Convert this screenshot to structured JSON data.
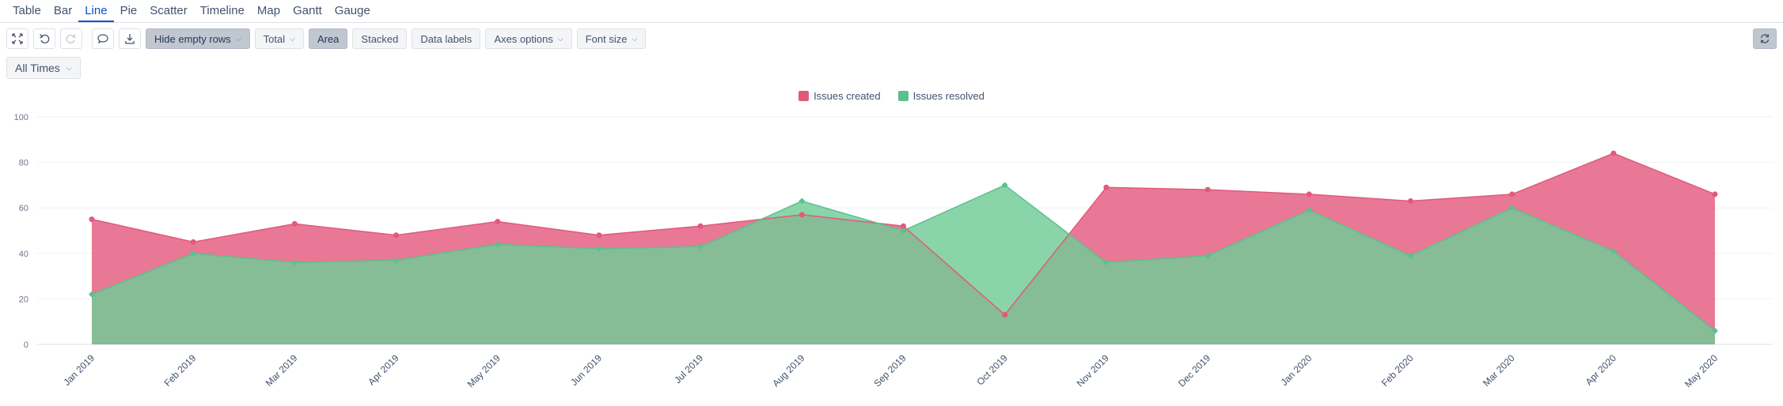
{
  "tabs": [
    {
      "label": "Table",
      "active": false
    },
    {
      "label": "Bar",
      "active": false
    },
    {
      "label": "Line",
      "active": true
    },
    {
      "label": "Pie",
      "active": false
    },
    {
      "label": "Scatter",
      "active": false
    },
    {
      "label": "Timeline",
      "active": false
    },
    {
      "label": "Map",
      "active": false
    },
    {
      "label": "Gantt",
      "active": false
    },
    {
      "label": "Gauge",
      "active": false
    }
  ],
  "toolbar": {
    "hide_empty_rows": "Hide empty rows",
    "total": "Total",
    "area": "Area",
    "stacked": "Stacked",
    "data_labels": "Data labels",
    "axes_options": "Axes options",
    "font_size": "Font size"
  },
  "time_filter": "All Times",
  "colors": {
    "created": "#e05a7c",
    "resolved": "#5cc08e",
    "created_fill": "rgba(226, 82, 120, 0.78)",
    "resolved_fill": "rgba(112, 202, 150, 0.82)"
  },
  "chart_data": {
    "type": "area",
    "title": "",
    "xlabel": "",
    "ylabel": "",
    "ylim": [
      0,
      100
    ],
    "yticks": [
      0,
      20,
      40,
      60,
      80,
      100
    ],
    "grid": true,
    "legend_position": "top-center",
    "categories": [
      "Jan 2019",
      "Feb 2019",
      "Mar 2019",
      "Apr 2019",
      "May 2019",
      "Jun 2019",
      "Jul 2019",
      "Aug 2019",
      "Sep 2019",
      "Oct 2019",
      "Nov 2019",
      "Dec 2019",
      "Jan 2020",
      "Feb 2020",
      "Mar 2020",
      "Apr 2020",
      "May 2020"
    ],
    "series": [
      {
        "name": "Issues created",
        "values": [
          55,
          45,
          53,
          48,
          54,
          48,
          52,
          57,
          52,
          13,
          69,
          68,
          66,
          63,
          66,
          84,
          66
        ]
      },
      {
        "name": "Issues resolved",
        "values": [
          22,
          40,
          36,
          37,
          44,
          42,
          43,
          63,
          50,
          70,
          36,
          39,
          59,
          39,
          60,
          41,
          6
        ]
      }
    ]
  }
}
